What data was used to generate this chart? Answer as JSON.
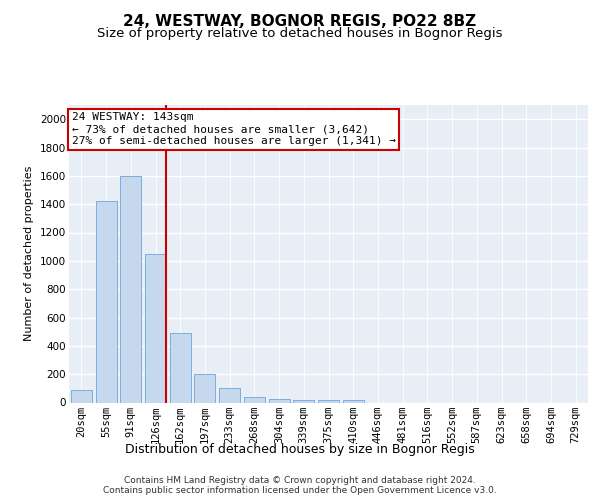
{
  "title1": "24, WESTWAY, BOGNOR REGIS, PO22 8BZ",
  "title2": "Size of property relative to detached houses in Bognor Regis",
  "xlabel": "Distribution of detached houses by size in Bognor Regis",
  "ylabel": "Number of detached properties",
  "categories": [
    "20sqm",
    "55sqm",
    "91sqm",
    "126sqm",
    "162sqm",
    "197sqm",
    "233sqm",
    "268sqm",
    "304sqm",
    "339sqm",
    "375sqm",
    "410sqm",
    "446sqm",
    "481sqm",
    "516sqm",
    "552sqm",
    "587sqm",
    "623sqm",
    "658sqm",
    "694sqm",
    "729sqm"
  ],
  "values": [
    85,
    1420,
    1600,
    1045,
    490,
    200,
    105,
    40,
    25,
    20,
    20,
    15,
    0,
    0,
    0,
    0,
    0,
    0,
    0,
    0,
    0
  ],
  "bar_color": "#c5d8ed",
  "bar_edge_color": "#7aaedc",
  "red_line_color": "#cc0000",
  "annotation_line1": "24 WESTWAY: 143sqm",
  "annotation_line2": "← 73% of detached houses are smaller (3,642)",
  "annotation_line3": "27% of semi-detached houses are larger (1,341) →",
  "annotation_box_color": "#ffffff",
  "annotation_box_edge": "#cc0000",
  "ylim": [
    0,
    2100
  ],
  "yticks": [
    0,
    200,
    400,
    600,
    800,
    1000,
    1200,
    1400,
    1600,
    1800,
    2000
  ],
  "background_color": "#e8eef6",
  "grid_color": "#ffffff",
  "footnote": "Contains HM Land Registry data © Crown copyright and database right 2024.\nContains public sector information licensed under the Open Government Licence v3.0.",
  "title1_fontsize": 11,
  "title2_fontsize": 9.5,
  "xlabel_fontsize": 9,
  "ylabel_fontsize": 8,
  "tick_fontsize": 7.5,
  "annotation_fontsize": 8,
  "footnote_fontsize": 6.5
}
